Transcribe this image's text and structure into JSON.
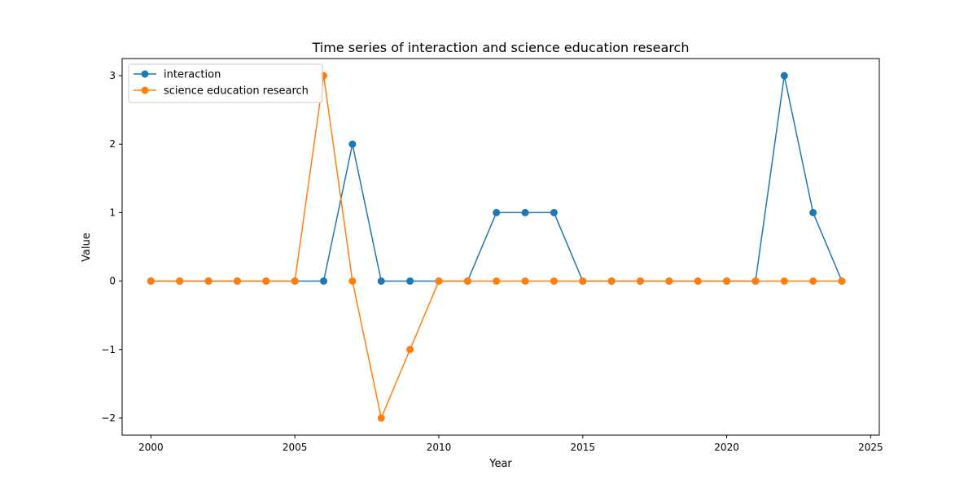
{
  "chart_data": {
    "type": "line",
    "title": "Time series of interaction and science education research",
    "xlabel": "Year",
    "ylabel": "Value",
    "xlim": [
      1999.0,
      2025.3
    ],
    "ylim": [
      -2.25,
      3.25
    ],
    "xticks": [
      2000,
      2005,
      2010,
      2015,
      2020,
      2025
    ],
    "yticks": [
      -2,
      -1,
      0,
      1,
      2,
      3
    ],
    "ytick_labels": [
      "−2",
      "−1",
      "0",
      "1",
      "2",
      "3"
    ],
    "grid": false,
    "legend_position": "top-left",
    "x": [
      2000,
      2001,
      2002,
      2003,
      2004,
      2005,
      2006,
      2007,
      2008,
      2009,
      2010,
      2011,
      2012,
      2013,
      2014,
      2015,
      2016,
      2017,
      2018,
      2019,
      2020,
      2021,
      2022,
      2023,
      2024
    ],
    "series": [
      {
        "name": "interaction",
        "color": "#1f77b4",
        "values": [
          0,
          0,
          0,
          0,
          0,
          0,
          0,
          2,
          0,
          0,
          0,
          0,
          1,
          1,
          1,
          0,
          0,
          0,
          0,
          0,
          0,
          0,
          3,
          1,
          0
        ]
      },
      {
        "name": "science education research",
        "color": "#ff7f0e",
        "values": [
          0,
          0,
          0,
          0,
          0,
          0,
          3,
          0,
          -2,
          -1,
          0,
          0,
          0,
          0,
          0,
          0,
          0,
          0,
          0,
          0,
          0,
          0,
          0,
          0,
          0
        ]
      }
    ]
  }
}
